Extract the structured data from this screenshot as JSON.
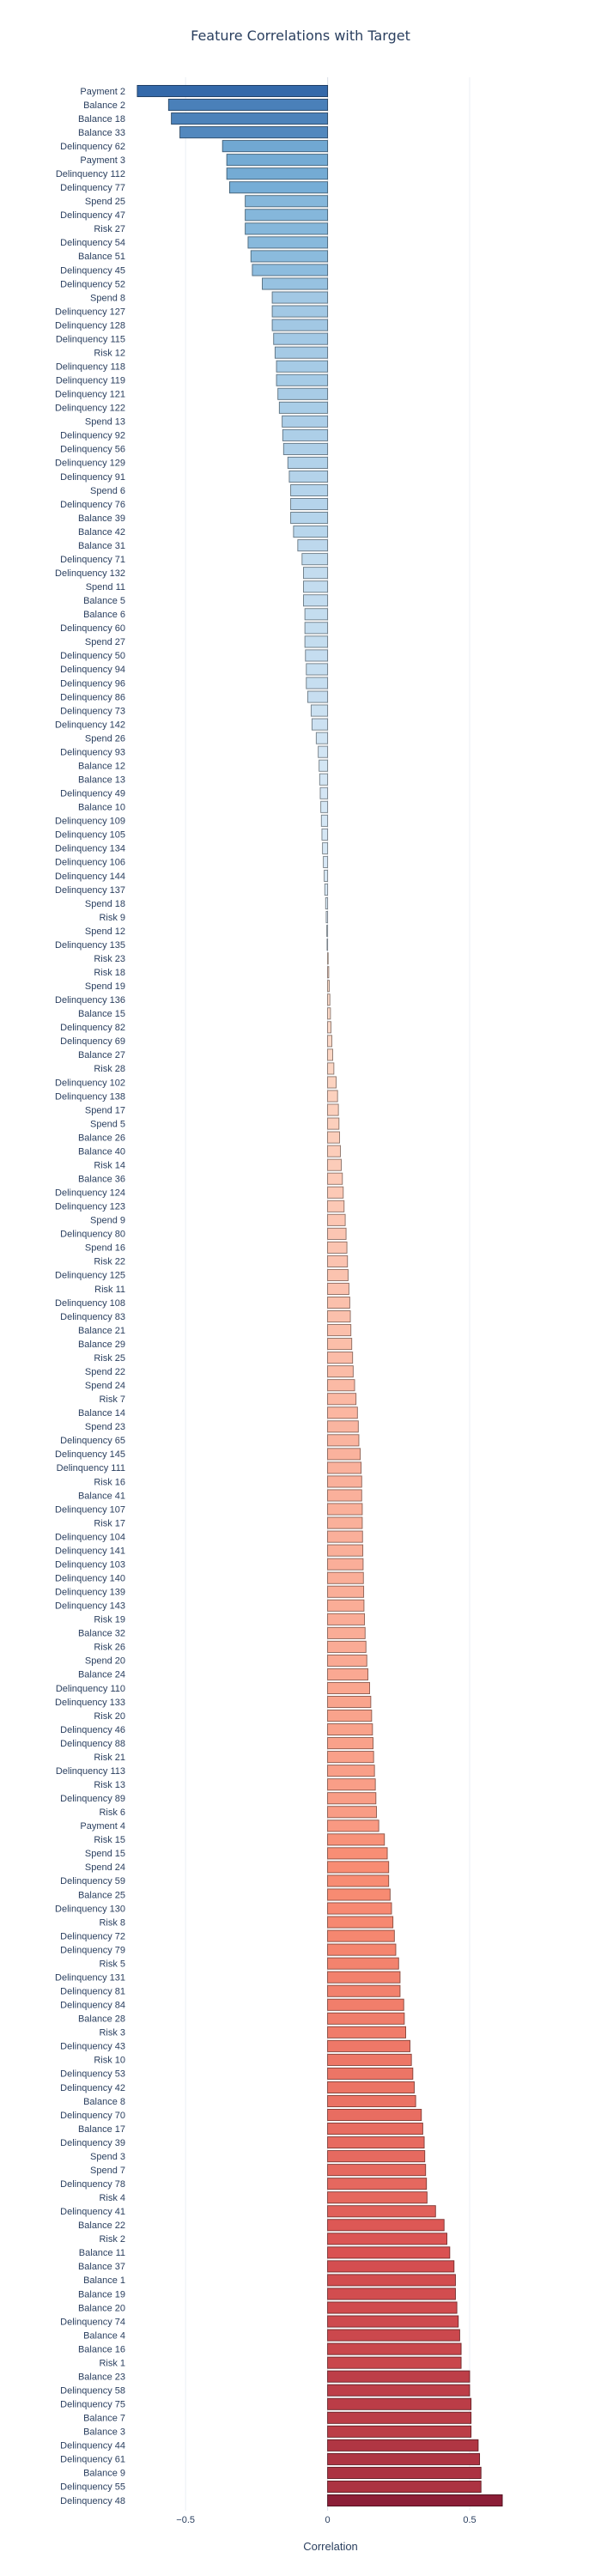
{
  "chart_data": {
    "type": "bar",
    "orientation": "horizontal",
    "title": "Feature Correlations with Target",
    "xlabel": "Correlation",
    "ylabel": "",
    "xlim": [
      -0.7,
      0.63
    ],
    "xticks": [
      -0.5,
      0,
      0.5
    ],
    "xtick_labels": [
      "−0.5",
      "0",
      "0.5"
    ],
    "grid": "vertical gridlines",
    "colorscale": "RdBu (blue for negative, red for positive)",
    "bars": [
      {
        "label": "Payment 2",
        "value": -0.67
      },
      {
        "label": "Balance 2",
        "value": -0.56
      },
      {
        "label": "Balance 18",
        "value": -0.55
      },
      {
        "label": "Balance 33",
        "value": -0.52
      },
      {
        "label": "Delinquency 62",
        "value": -0.37
      },
      {
        "label": "Payment 3",
        "value": -0.355
      },
      {
        "label": "Delinquency 112",
        "value": -0.355
      },
      {
        "label": "Delinquency 77",
        "value": -0.345
      },
      {
        "label": "Spend 25",
        "value": -0.29
      },
      {
        "label": "Delinquency 47",
        "value": -0.29
      },
      {
        "label": "Risk 27",
        "value": -0.29
      },
      {
        "label": "Delinquency 54",
        "value": -0.28
      },
      {
        "label": "Balance 51",
        "value": -0.27
      },
      {
        "label": "Delinquency 45",
        "value": -0.265
      },
      {
        "label": "Delinquency 52",
        "value": -0.23
      },
      {
        "label": "Spend 8",
        "value": -0.195
      },
      {
        "label": "Delinquency 127",
        "value": -0.195
      },
      {
        "label": "Delinquency 128",
        "value": -0.195
      },
      {
        "label": "Delinquency 115",
        "value": -0.19
      },
      {
        "label": "Risk 12",
        "value": -0.185
      },
      {
        "label": "Delinquency 118",
        "value": -0.18
      },
      {
        "label": "Delinquency 119",
        "value": -0.18
      },
      {
        "label": "Delinquency 121",
        "value": -0.175
      },
      {
        "label": "Delinquency 122",
        "value": -0.17
      },
      {
        "label": "Spend 13",
        "value": -0.16
      },
      {
        "label": "Delinquency 92",
        "value": -0.158
      },
      {
        "label": "Delinquency 56",
        "value": -0.155
      },
      {
        "label": "Delinquency 129",
        "value": -0.14
      },
      {
        "label": "Delinquency 91",
        "value": -0.135
      },
      {
        "label": "Spend 6",
        "value": -0.13
      },
      {
        "label": "Delinquency 76",
        "value": -0.13
      },
      {
        "label": "Balance 39",
        "value": -0.13
      },
      {
        "label": "Balance 42",
        "value": -0.12
      },
      {
        "label": "Balance 31",
        "value": -0.105
      },
      {
        "label": "Delinquency 71",
        "value": -0.09
      },
      {
        "label": "Delinquency 132",
        "value": -0.085
      },
      {
        "label": "Spend 11",
        "value": -0.085
      },
      {
        "label": "Balance 5",
        "value": -0.085
      },
      {
        "label": "Balance 6",
        "value": -0.08
      },
      {
        "label": "Delinquency 60",
        "value": -0.08
      },
      {
        "label": "Spend 27",
        "value": -0.08
      },
      {
        "label": "Delinquency 50",
        "value": -0.078
      },
      {
        "label": "Delinquency 94",
        "value": -0.075
      },
      {
        "label": "Delinquency 96",
        "value": -0.075
      },
      {
        "label": "Delinquency 86",
        "value": -0.07
      },
      {
        "label": "Delinquency 73",
        "value": -0.058
      },
      {
        "label": "Delinquency 142",
        "value": -0.055
      },
      {
        "label": "Spend 26",
        "value": -0.04
      },
      {
        "label": "Delinquency 93",
        "value": -0.033
      },
      {
        "label": "Balance 12",
        "value": -0.03
      },
      {
        "label": "Balance 13",
        "value": -0.028
      },
      {
        "label": "Delinquency 49",
        "value": -0.026
      },
      {
        "label": "Balance 10",
        "value": -0.024
      },
      {
        "label": "Delinquency 109",
        "value": -0.022
      },
      {
        "label": "Delinquency 105",
        "value": -0.02
      },
      {
        "label": "Delinquency 134",
        "value": -0.018
      },
      {
        "label": "Delinquency 106",
        "value": -0.015
      },
      {
        "label": "Delinquency 144",
        "value": -0.012
      },
      {
        "label": "Delinquency 137",
        "value": -0.01
      },
      {
        "label": "Spend 18",
        "value": -0.007
      },
      {
        "label": "Risk 9",
        "value": -0.005
      },
      {
        "label": "Spend 12",
        "value": -0.003
      },
      {
        "label": "Delinquency 135",
        "value": -0.002
      },
      {
        "label": "Risk 23",
        "value": 0.002
      },
      {
        "label": "Risk 18",
        "value": 0.004
      },
      {
        "label": "Spend 19",
        "value": 0.006
      },
      {
        "label": "Delinquency 136",
        "value": 0.008
      },
      {
        "label": "Balance 15",
        "value": 0.01
      },
      {
        "label": "Delinquency 82",
        "value": 0.012
      },
      {
        "label": "Delinquency 69",
        "value": 0.015
      },
      {
        "label": "Balance 27",
        "value": 0.018
      },
      {
        "label": "Risk 28",
        "value": 0.022
      },
      {
        "label": "Delinquency 102",
        "value": 0.03
      },
      {
        "label": "Delinquency 138",
        "value": 0.035
      },
      {
        "label": "Spend 17",
        "value": 0.038
      },
      {
        "label": "Spend 5",
        "value": 0.04
      },
      {
        "label": "Balance 26",
        "value": 0.042
      },
      {
        "label": "Balance 40",
        "value": 0.045
      },
      {
        "label": "Risk 14",
        "value": 0.048
      },
      {
        "label": "Balance 36",
        "value": 0.052
      },
      {
        "label": "Delinquency 124",
        "value": 0.055
      },
      {
        "label": "Delinquency 123",
        "value": 0.058
      },
      {
        "label": "Spend 9",
        "value": 0.062
      },
      {
        "label": "Delinquency 80",
        "value": 0.065
      },
      {
        "label": "Spend 16",
        "value": 0.068
      },
      {
        "label": "Risk 22",
        "value": 0.07
      },
      {
        "label": "Delinquency 125",
        "value": 0.072
      },
      {
        "label": "Risk 11",
        "value": 0.075
      },
      {
        "label": "Delinquency 108",
        "value": 0.078
      },
      {
        "label": "Delinquency 83",
        "value": 0.08
      },
      {
        "label": "Balance 21",
        "value": 0.082
      },
      {
        "label": "Balance 29",
        "value": 0.085
      },
      {
        "label": "Risk 25",
        "value": 0.088
      },
      {
        "label": "Spend 22",
        "value": 0.09
      },
      {
        "label": "Spend 24",
        "value": 0.095
      },
      {
        "label": "Risk 7",
        "value": 0.1
      },
      {
        "label": "Balance 14",
        "value": 0.105
      },
      {
        "label": "Spend 23",
        "value": 0.108
      },
      {
        "label": "Delinquency 65",
        "value": 0.11
      },
      {
        "label": "Delinquency 145",
        "value": 0.115
      },
      {
        "label": "Delinquency 111",
        "value": 0.118
      },
      {
        "label": "Risk 16",
        "value": 0.12
      },
      {
        "label": "Balance 41",
        "value": 0.12
      },
      {
        "label": "Delinquency 107",
        "value": 0.122
      },
      {
        "label": "Risk 17",
        "value": 0.122
      },
      {
        "label": "Delinquency 104",
        "value": 0.123
      },
      {
        "label": "Delinquency 141",
        "value": 0.124
      },
      {
        "label": "Delinquency 103",
        "value": 0.125
      },
      {
        "label": "Delinquency 140",
        "value": 0.126
      },
      {
        "label": "Delinquency 139",
        "value": 0.127
      },
      {
        "label": "Delinquency 143",
        "value": 0.128
      },
      {
        "label": "Risk 19",
        "value": 0.13
      },
      {
        "label": "Balance 32",
        "value": 0.132
      },
      {
        "label": "Risk 26",
        "value": 0.135
      },
      {
        "label": "Spend 20",
        "value": 0.138
      },
      {
        "label": "Balance 24",
        "value": 0.142
      },
      {
        "label": "Delinquency 110",
        "value": 0.148
      },
      {
        "label": "Delinquency 133",
        "value": 0.152
      },
      {
        "label": "Risk 20",
        "value": 0.155
      },
      {
        "label": "Delinquency 46",
        "value": 0.158
      },
      {
        "label": "Delinquency 88",
        "value": 0.16
      },
      {
        "label": "Risk 21",
        "value": 0.162
      },
      {
        "label": "Delinquency 113",
        "value": 0.165
      },
      {
        "label": "Risk 13",
        "value": 0.168
      },
      {
        "label": "Delinquency 89",
        "value": 0.17
      },
      {
        "label": "Risk 6",
        "value": 0.172
      },
      {
        "label": "Payment 4",
        "value": 0.18
      },
      {
        "label": "Risk 15",
        "value": 0.2
      },
      {
        "label": "Spend 15",
        "value": 0.21
      },
      {
        "label": "Spend 24",
        "value": 0.215
      },
      {
        "label": "Delinquency 59",
        "value": 0.215
      },
      {
        "label": "Balance 25",
        "value": 0.22
      },
      {
        "label": "Delinquency 130",
        "value": 0.225
      },
      {
        "label": "Risk 8",
        "value": 0.23
      },
      {
        "label": "Delinquency 72",
        "value": 0.235
      },
      {
        "label": "Delinquency 79",
        "value": 0.24
      },
      {
        "label": "Risk 5",
        "value": 0.25
      },
      {
        "label": "Delinquency 131",
        "value": 0.255
      },
      {
        "label": "Delinquency 81",
        "value": 0.255
      },
      {
        "label": "Delinquency 84",
        "value": 0.268
      },
      {
        "label": "Balance 28",
        "value": 0.27
      },
      {
        "label": "Risk 3",
        "value": 0.275
      },
      {
        "label": "Delinquency 43",
        "value": 0.29
      },
      {
        "label": "Risk 10",
        "value": 0.295
      },
      {
        "label": "Delinquency 53",
        "value": 0.3
      },
      {
        "label": "Delinquency 42",
        "value": 0.305
      },
      {
        "label": "Balance 8",
        "value": 0.31
      },
      {
        "label": "Delinquency 70",
        "value": 0.33
      },
      {
        "label": "Balance 17",
        "value": 0.335
      },
      {
        "label": "Delinquency 39",
        "value": 0.34
      },
      {
        "label": "Spend 3",
        "value": 0.342
      },
      {
        "label": "Spend 7",
        "value": 0.345
      },
      {
        "label": "Delinquency 78",
        "value": 0.348
      },
      {
        "label": "Risk 4",
        "value": 0.35
      },
      {
        "label": "Delinquency 41",
        "value": 0.38
      },
      {
        "label": "Balance 22",
        "value": 0.41
      },
      {
        "label": "Risk 2",
        "value": 0.42
      },
      {
        "label": "Balance 11",
        "value": 0.43
      },
      {
        "label": "Balance 37",
        "value": 0.445
      },
      {
        "label": "Balance 1",
        "value": 0.45
      },
      {
        "label": "Balance 19",
        "value": 0.45
      },
      {
        "label": "Balance 20",
        "value": 0.455
      },
      {
        "label": "Delinquency 74",
        "value": 0.46
      },
      {
        "label": "Balance 4",
        "value": 0.465
      },
      {
        "label": "Balance 16",
        "value": 0.47
      },
      {
        "label": "Risk 1",
        "value": 0.47
      },
      {
        "label": "Balance 23",
        "value": 0.5
      },
      {
        "label": "Delinquency 58",
        "value": 0.5
      },
      {
        "label": "Delinquency 75",
        "value": 0.505
      },
      {
        "label": "Balance 7",
        "value": 0.505
      },
      {
        "label": "Balance 3",
        "value": 0.505
      },
      {
        "label": "Delinquency 44",
        "value": 0.53
      },
      {
        "label": "Delinquency 61",
        "value": 0.535
      },
      {
        "label": "Balance 9",
        "value": 0.54
      },
      {
        "label": "Delinquency 55",
        "value": 0.54
      },
      {
        "label": "Delinquency 48",
        "value": 0.615
      }
    ]
  }
}
